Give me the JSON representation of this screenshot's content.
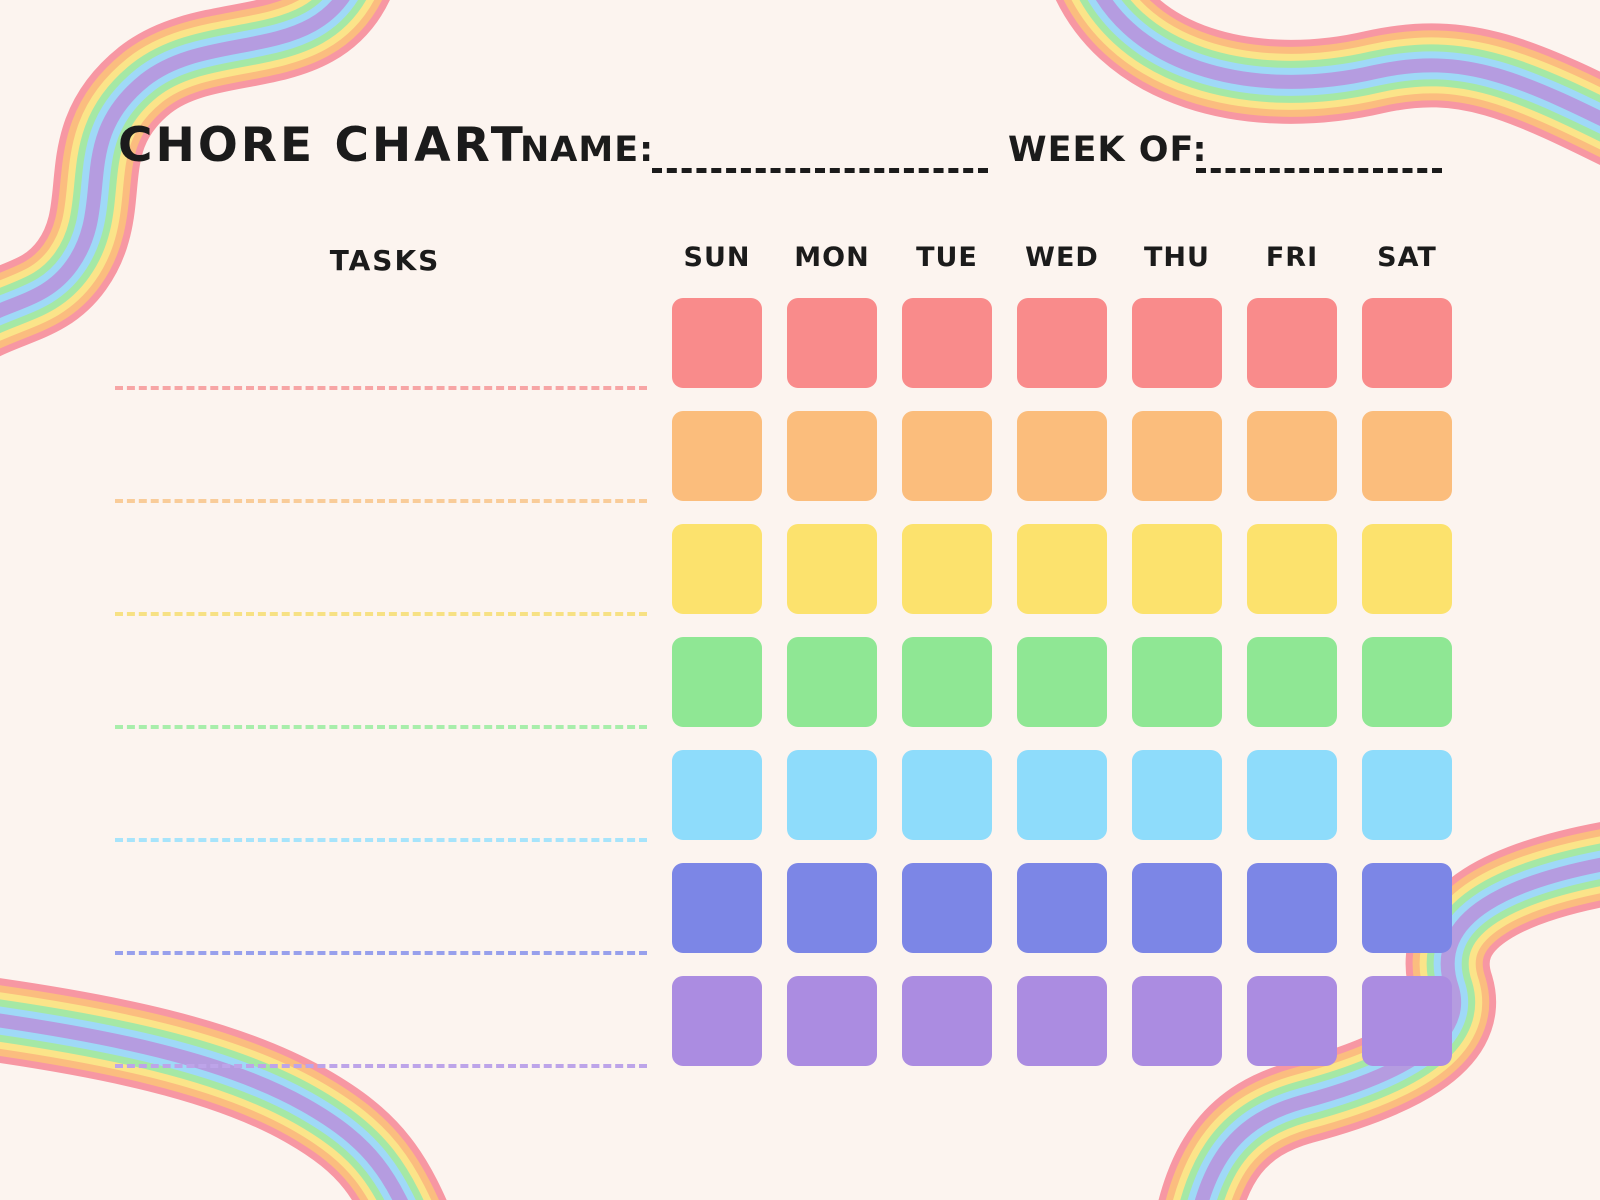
{
  "page": {
    "background_color": "#fcf4ef"
  },
  "header": {
    "title": "CHORE CHART",
    "name_label": "NAME:",
    "week_label": "WEEK OF:",
    "name_value": "",
    "week_value": ""
  },
  "table": {
    "tasks_header": "TASKS",
    "days": [
      "SUN",
      "MON",
      "TUE",
      "WED",
      "THU",
      "FRI",
      "SAT"
    ],
    "rows": [
      {
        "row_name": "red-row",
        "cell_color": "#f98b8b",
        "line_color": "#f7a5a5",
        "task_value": ""
      },
      {
        "row_name": "orange-row",
        "cell_color": "#fbbd7c",
        "line_color": "#f9cc99",
        "task_value": ""
      },
      {
        "row_name": "yellow-row",
        "cell_color": "#fce26d",
        "line_color": "#f7e184",
        "task_value": ""
      },
      {
        "row_name": "green-row",
        "cell_color": "#8fe794",
        "line_color": "#a8eeab",
        "task_value": ""
      },
      {
        "row_name": "blue-row",
        "cell_color": "#8edcfb",
        "line_color": "#a7e4fb",
        "task_value": ""
      },
      {
        "row_name": "periwinkle-row",
        "cell_color": "#7c86e6",
        "line_color": "#98a0ec",
        "task_value": ""
      },
      {
        "row_name": "purple-row",
        "cell_color": "#ab8ce1",
        "line_color": "#bda4e9",
        "task_value": ""
      }
    ]
  },
  "decor": {
    "ribbon_stripe_colors": [
      "#f797a3",
      "#fbbd7f",
      "#fbe489",
      "#a5e8a5",
      "#9fd9f7",
      "#b59ce0"
    ]
  }
}
